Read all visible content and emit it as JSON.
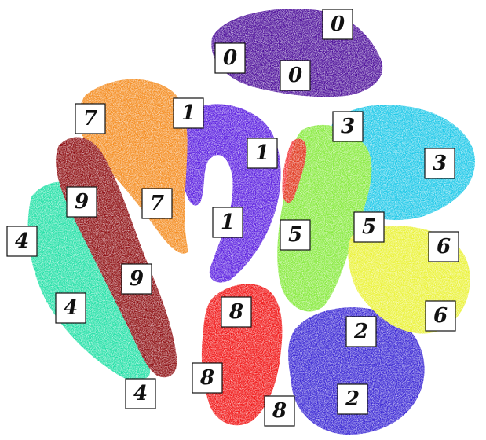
{
  "clusters": [
    {
      "label": "0",
      "color": "#4d0f9a"
    },
    {
      "label": "1",
      "color": "#5a1fe0"
    },
    {
      "label": "2",
      "color": "#3a28d4"
    },
    {
      "label": "3",
      "color": "#1ec8e8"
    },
    {
      "label": "4",
      "color": "#22e0a6"
    },
    {
      "label": "5",
      "color": "#86ea3c"
    },
    {
      "label": "6",
      "color": "#eaf236"
    },
    {
      "label": "7",
      "color": "#f48b1e"
    },
    {
      "label": "8",
      "color": "#f01414"
    },
    {
      "label": "9",
      "color": "#8e0c12"
    }
  ],
  "digit_labels": [
    "0",
    "0",
    "0",
    "1",
    "1",
    "1",
    "2",
    "2",
    "3",
    "3",
    "4",
    "4",
    "4",
    "5",
    "5",
    "6",
    "6",
    "7",
    "7",
    "8",
    "8",
    "8",
    "9",
    "9"
  ]
}
